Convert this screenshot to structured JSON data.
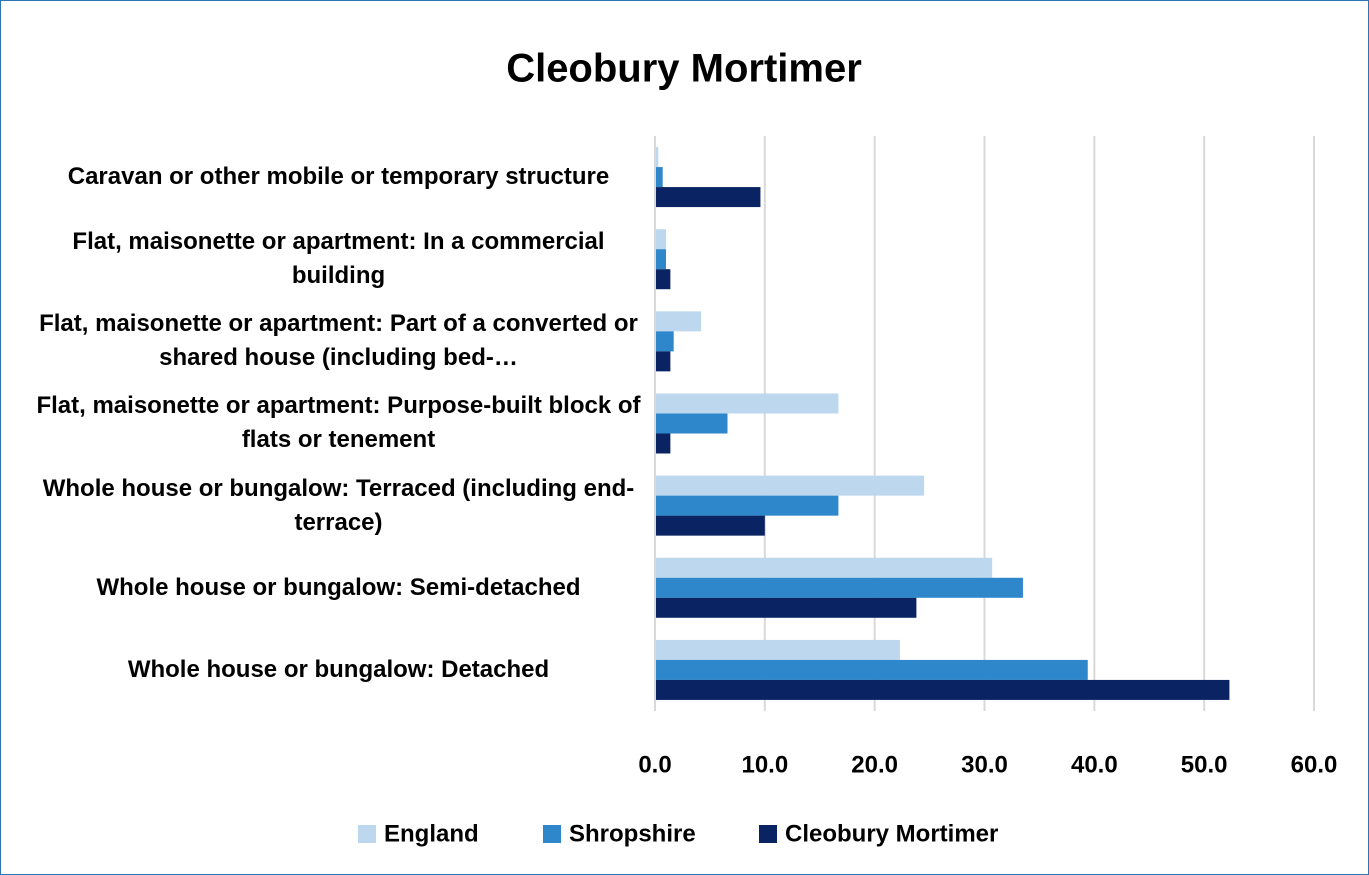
{
  "chart_data": {
    "type": "bar",
    "orientation": "horizontal",
    "title": "Cleobury Mortimer",
    "categories": [
      "Caravan or other mobile or temporary structure",
      "Flat, maisonette or apartment: In a commercial building",
      "Flat, maisonette or apartment: Part of a converted or shared house (including bed-…",
      "Flat, maisonette or apartment: Purpose-built block of flats or tenement",
      "Whole house or bungalow: Terraced (including end-terrace)",
      "Whole house or bungalow: Semi-detached",
      "Whole house or bungalow: Detached"
    ],
    "series": [
      {
        "name": "England",
        "color": "#bdd7ee",
        "values": [
          0.3,
          1.0,
          4.2,
          16.7,
          24.5,
          30.7,
          22.3
        ]
      },
      {
        "name": "Shropshire",
        "color": "#2e86cb",
        "values": [
          0.7,
          1.0,
          1.7,
          6.6,
          16.7,
          33.5,
          39.4
        ]
      },
      {
        "name": "Cleobury Mortimer",
        "color": "#0a2463",
        "values": [
          9.6,
          1.4,
          1.4,
          1.4,
          10.0,
          23.8,
          52.3
        ]
      }
    ],
    "xlim": [
      0,
      60
    ],
    "xticks": [
      {
        "value": 0,
        "label": "0.0"
      },
      {
        "value": 10,
        "label": "10.0"
      },
      {
        "value": 20,
        "label": "20.0"
      },
      {
        "value": 30,
        "label": "30.0"
      },
      {
        "value": 40,
        "label": "40.0"
      },
      {
        "value": 50,
        "label": "50.0"
      },
      {
        "value": 60,
        "label": "60.0"
      }
    ],
    "grid": true,
    "legend": "bottom"
  }
}
